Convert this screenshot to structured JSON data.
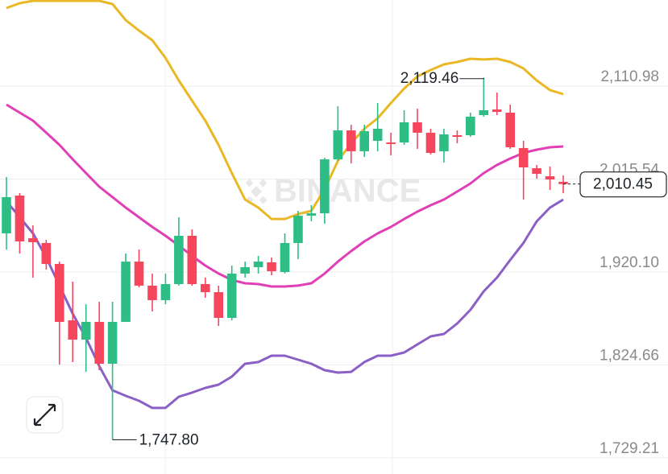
{
  "chart_data": {
    "type": "candlestick",
    "open": [
      1959.8,
      1998.6,
      1954.8,
      1949.9,
      1928.4,
      1870.5,
      1850.7,
      1868.9,
      1825.9,
      1868.9,
      1930.8,
      1906.1,
      1891.2,
      1907.7,
      1957.3,
      1907.7,
      1899.4,
      1873.0,
      1918.5,
      1925.1,
      1930.0,
      1920.1,
      1949.9,
      1977.9,
      1980.4,
      2035.8,
      2065.5,
      2044.1,
      2054.8,
      2053.1,
      2053.1,
      2073.8,
      2063.1,
      2044.1,
      2060.6,
      2060.6,
      2081.2,
      2087.0,
      2083.7,
      2047.4,
      2026.7,
      2018.4,
      2012.7
    ],
    "high": [
      2017.6,
      2001.1,
      1968.0,
      1953.2,
      1930.8,
      1910.2,
      1887.0,
      1889.5,
      1889.5,
      1939.1,
      1943.2,
      1918.5,
      1918.5,
      1976.3,
      1963.9,
      1914.3,
      1906.1,
      1926.7,
      1930.8,
      1936.6,
      1935.0,
      1959.8,
      1982.9,
      1988.7,
      2037.4,
      2090.3,
      2071.3,
      2071.3,
      2093.6,
      2063.1,
      2086.2,
      2087.8,
      2067.2,
      2067.2,
      2065.5,
      2083.7,
      2119.46,
      2104.4,
      2092.0,
      2054.8,
      2030.0,
      2028.4,
      2019.3
    ],
    "low": [
      1943.2,
      1939.1,
      1914.3,
      1922.6,
      1825.1,
      1827.6,
      1817.6,
      1819.3,
      1747.8,
      1868.9,
      1904.4,
      1879.6,
      1887.0,
      1906.1,
      1906.1,
      1893.7,
      1864.7,
      1870.5,
      1914.3,
      1918.5,
      1916.8,
      1918.5,
      1933.3,
      1972.2,
      1969.7,
      2034.1,
      2031.7,
      2038.3,
      2044.1,
      2039.9,
      2050.7,
      2046.5,
      2040.7,
      2032.5,
      2052.3,
      2058.9,
      2079.6,
      2081.2,
      2046.5,
      1994.5,
      2016.0,
      2004.4,
      2001.1
    ],
    "close": [
      1997.0,
      1951.5,
      1950.7,
      1928.4,
      1868.9,
      1850.7,
      1868.9,
      1825.9,
      1868.9,
      1930.8,
      1906.1,
      1891.2,
      1907.7,
      1957.3,
      1907.7,
      1899.4,
      1873.0,
      1918.5,
      1925.1,
      1930.8,
      1920.9,
      1949.9,
      1977.9,
      1980.4,
      2035.8,
      2065.5,
      2044.1,
      2064.7,
      2067.2,
      2051.5,
      2073.8,
      2063.1,
      2042.4,
      2061.4,
      2058.9,
      2079.6,
      2086.2,
      2084.5,
      2048.2,
      2027.5,
      2020.9,
      2015.1,
      2010.45
    ],
    "up_color": "#2ebd85",
    "down_color": "#f6465d",
    "bands": [
      {
        "color": "#e9b824",
        "values": [
          2191.1,
          2196.1,
          2198.6,
          2198.6,
          2198.6,
          2198.6,
          2198.6,
          2198.6,
          2195.3,
          2178.7,
          2168.0,
          2158.1,
          2139.9,
          2116.8,
          2096.1,
          2075.5,
          2050.7,
          2021.7,
          1994.5,
          1986.2,
          1974.6,
          1974.6,
          1979.6,
          1982.9,
          2005.2,
          2034.1,
          2052.3,
          2067.2,
          2077.9,
          2093.6,
          2108.5,
          2120.9,
          2127.5,
          2133.3,
          2135.8,
          2139.1,
          2138.3,
          2139.1,
          2135.8,
          2129.2,
          2116.8,
          2106.9,
          2102.7
        ]
      },
      {
        "color": "#e03fb5",
        "values": [
          2092.0,
          2083.7,
          2075.5,
          2063.1,
          2050.7,
          2035.8,
          2021.7,
          2007.7,
          1997.0,
          1986.2,
          1976.3,
          1966.4,
          1957.3,
          1947.4,
          1936.6,
          1926.7,
          1918.5,
          1911.9,
          1908.5,
          1907.7,
          1905.2,
          1905.2,
          1906.1,
          1908.5,
          1918.5,
          1930.8,
          1941.6,
          1951.5,
          1959.8,
          1966.4,
          1974.6,
          1982.1,
          1988.7,
          1994.5,
          2002.7,
          2011.0,
          2021.7,
          2030.0,
          2036.6,
          2042.4,
          2045.7,
          2048.2,
          2049.0
        ]
      },
      {
        "color": "#8a5fc6",
        "values": [
          1992.8,
          1976.3,
          1959.8,
          1935.0,
          1906.1,
          1877.1,
          1852.4,
          1823.4,
          1798.6,
          1792.9,
          1787.9,
          1780.5,
          1780.5,
          1792.0,
          1796.2,
          1801.1,
          1804.4,
          1812.7,
          1825.9,
          1827.6,
          1834.2,
          1834.2,
          1830.0,
          1825.9,
          1819.3,
          1816.8,
          1817.6,
          1827.6,
          1834.2,
          1834.2,
          1837.5,
          1845.7,
          1854.0,
          1856.5,
          1867.2,
          1881.3,
          1900.3,
          1914.3,
          1932.5,
          1949.9,
          1972.2,
          1986.2,
          1994.5
        ]
      }
    ],
    "ylim": [
      1712.7,
      2199.4
    ],
    "yticks": [
      {
        "value": 2110.98,
        "label": "2,110.98"
      },
      {
        "value": 2015.54,
        "label": "2,015.54"
      },
      {
        "value": 1920.1,
        "label": "1,920.10"
      },
      {
        "value": 1824.66,
        "label": "1,824.66"
      },
      {
        "value": 1729.21,
        "label": "1,729.21"
      }
    ],
    "grid": true,
    "high_label": {
      "value": 2119.46,
      "label": "2,119.46"
    },
    "low_label": {
      "value": 1747.8,
      "label": "1,747.80"
    },
    "last_price": {
      "value": 2010.45,
      "label": "2,010.45"
    },
    "watermark": "BINANCE"
  }
}
